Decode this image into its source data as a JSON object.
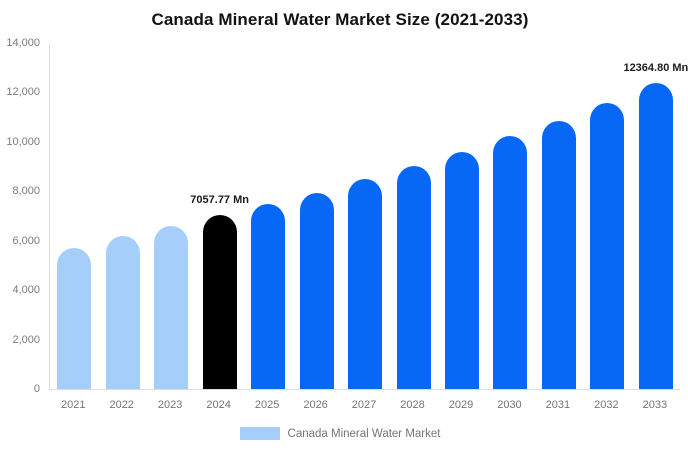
{
  "title": "Canada Mineral Water Market Size (2021-2033)",
  "legend": {
    "label": "Canada Mineral Water Market"
  },
  "colors": {
    "historical_bar": "#A5CFFA",
    "base_year_bar": "#000000",
    "forecast_bar": "#0768F6",
    "axis_line": "#DDDDDD",
    "tick_text": "#7B7B7B",
    "title_text": "#121212",
    "value_label_text": "#1C1C1C",
    "background": "#FFFFFF"
  },
  "chart_data": {
    "type": "bar",
    "title": "Canada Mineral Water Market Size (2021-2033)",
    "series_name": "Canada Mineral Water Market",
    "unit": "Mn",
    "categories": [
      "2021",
      "2022",
      "2023",
      "2024",
      "2025",
      "2026",
      "2027",
      "2028",
      "2029",
      "2030",
      "2031",
      "2032",
      "2033"
    ],
    "values": [
      5690,
      6190,
      6600,
      7057.77,
      7490,
      7940,
      8510,
      9020,
      9600,
      10240,
      10860,
      11580,
      12364.8
    ],
    "bar_colors": [
      "#A5CFFA",
      "#A5CFFA",
      "#A5CFFA",
      "#000000",
      "#0768F6",
      "#0768F6",
      "#0768F6",
      "#0768F6",
      "#0768F6",
      "#0768F6",
      "#0768F6",
      "#0768F6",
      "#0768F6"
    ],
    "data_labels": [
      {
        "category": "2024",
        "text": "7057.77 Mn"
      },
      {
        "category": "2033",
        "text": "12364.80 Mn"
      }
    ],
    "xlabel": "",
    "ylabel": "",
    "ylim": [
      0,
      14000
    ],
    "y_ticks": [
      "0",
      "2,000",
      "4,000",
      "6,000",
      "8,000",
      "10,000",
      "12,000",
      "14,000"
    ],
    "grid": false,
    "legend_position": "bottom"
  }
}
